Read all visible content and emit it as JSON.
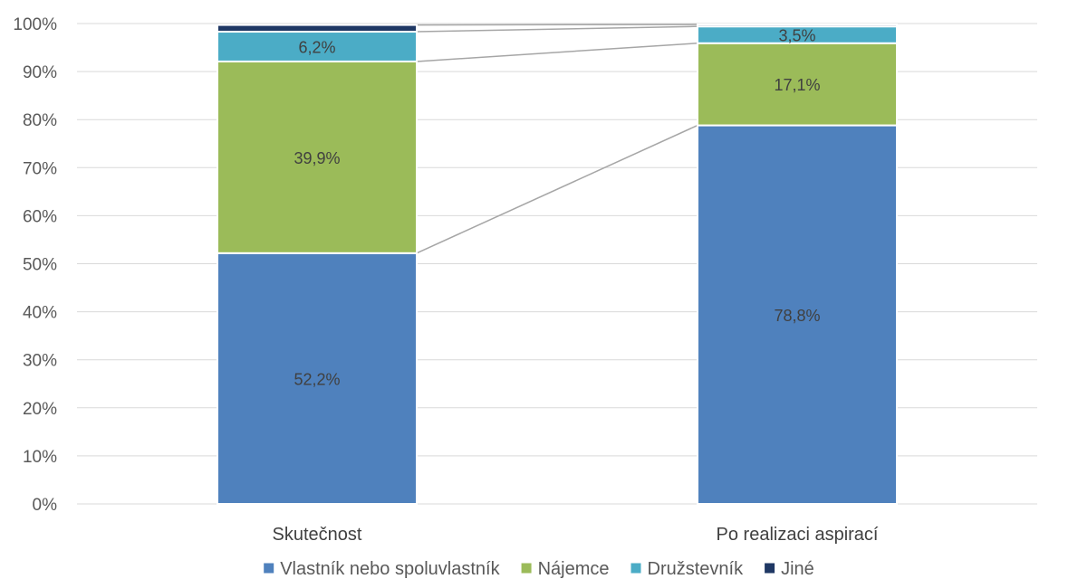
{
  "chart_data": {
    "type": "bar",
    "stacked": true,
    "percent": true,
    "categories": [
      "Skutečnost",
      "Po realizaci aspirací"
    ],
    "series": [
      {
        "name": "Vlastník nebo spoluvlastník",
        "values": [
          52.2,
          78.8
        ],
        "labels": [
          "52,2%",
          "78,8%"
        ],
        "color": "#4f81bd"
      },
      {
        "name": "Nájemce",
        "values": [
          39.9,
          17.1
        ],
        "labels": [
          "39,9%",
          "17,1%"
        ],
        "color": "#9bbb59"
      },
      {
        "name": "Družstevník",
        "values": [
          6.2,
          3.5
        ],
        "labels": [
          "6,2%",
          "3,5%"
        ],
        "color": "#4bacc6"
      },
      {
        "name": "Jiné",
        "values": [
          1.4,
          0.4
        ],
        "labels": [
          "",
          ""
        ],
        "color": "#1f3864"
      }
    ],
    "yticks": [
      "0%",
      "10%",
      "20%",
      "30%",
      "40%",
      "50%",
      "60%",
      "70%",
      "80%",
      "90%",
      "100%"
    ],
    "ylim": [
      0,
      100
    ],
    "grid": true,
    "series_lines": true,
    "legend_position": "bottom",
    "title": "",
    "xlabel": "",
    "ylabel": ""
  }
}
